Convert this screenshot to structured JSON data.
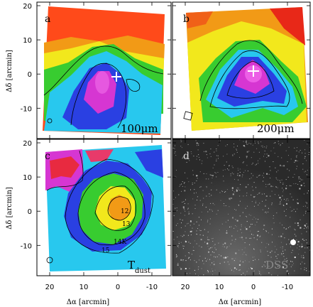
{
  "figure": {
    "x_axis_label": "Δα [arcmin]",
    "y_axis_label": "Δδ [arcmin]",
    "x_ticks": [
      "20",
      "10",
      "0",
      "-10"
    ],
    "y_ticks": [
      "20",
      "10",
      "0",
      "-10"
    ]
  },
  "panels": {
    "a": {
      "letter": "a",
      "wavelength": "100μm"
    },
    "b": {
      "letter": "b",
      "wavelength": "200μm"
    },
    "c": {
      "letter": "c",
      "temperature_main": "T",
      "temperature_sub": "dust",
      "contour_labels": [
        "12",
        "13",
        "14K",
        "15"
      ]
    },
    "d": {
      "letter": "d",
      "survey": "DSS"
    }
  },
  "colors": {
    "high": "#e01818",
    "orange": "#f08a10",
    "yellow": "#f2e81c",
    "green": "#38cc30",
    "cyan": "#28c8ee",
    "blue": "#2038e0",
    "magenta": "#e030d8",
    "dss_bg": "#202020"
  }
}
